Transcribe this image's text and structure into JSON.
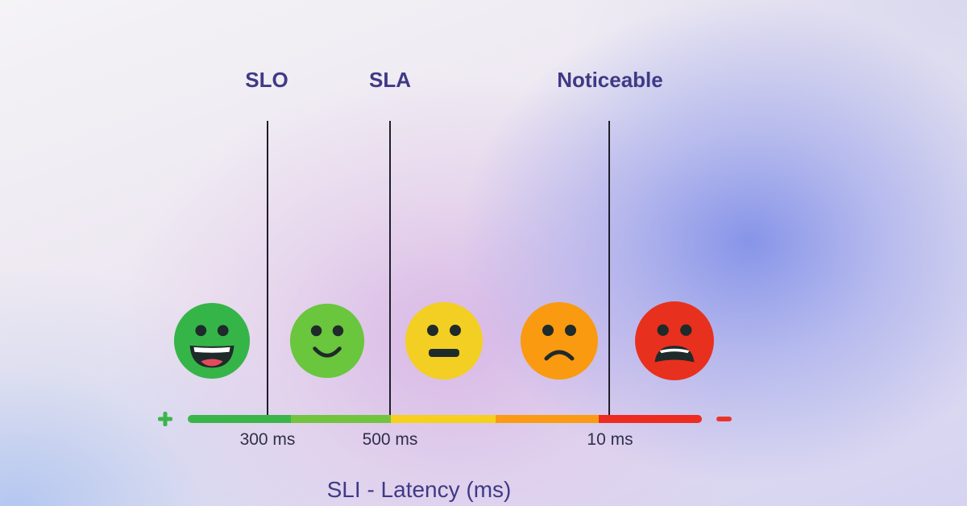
{
  "thresholds": [
    {
      "label": "SLO",
      "tick": "300 ms"
    },
    {
      "label": "SLA",
      "tick": "500 ms"
    },
    {
      "label": "Noticeable",
      "tick": "10 ms"
    }
  ],
  "axis_title": "SLI - Latency (ms)",
  "scale_ends": {
    "good": "+",
    "bad": "−"
  },
  "faces": [
    {
      "icon": "laughing-face-icon",
      "color": "#35b548"
    },
    {
      "icon": "smiling-face-icon",
      "color": "#6ac63d"
    },
    {
      "icon": "neutral-face-icon",
      "color": "#f2cf22"
    },
    {
      "icon": "frowning-face-icon",
      "color": "#f99a10"
    },
    {
      "icon": "distressed-face-icon",
      "color": "#e8301e"
    }
  ],
  "bar_colors": [
    "#3bb54a",
    "#72c43f",
    "#f7cf1f",
    "#fb9b13",
    "#ee2b20"
  ]
}
